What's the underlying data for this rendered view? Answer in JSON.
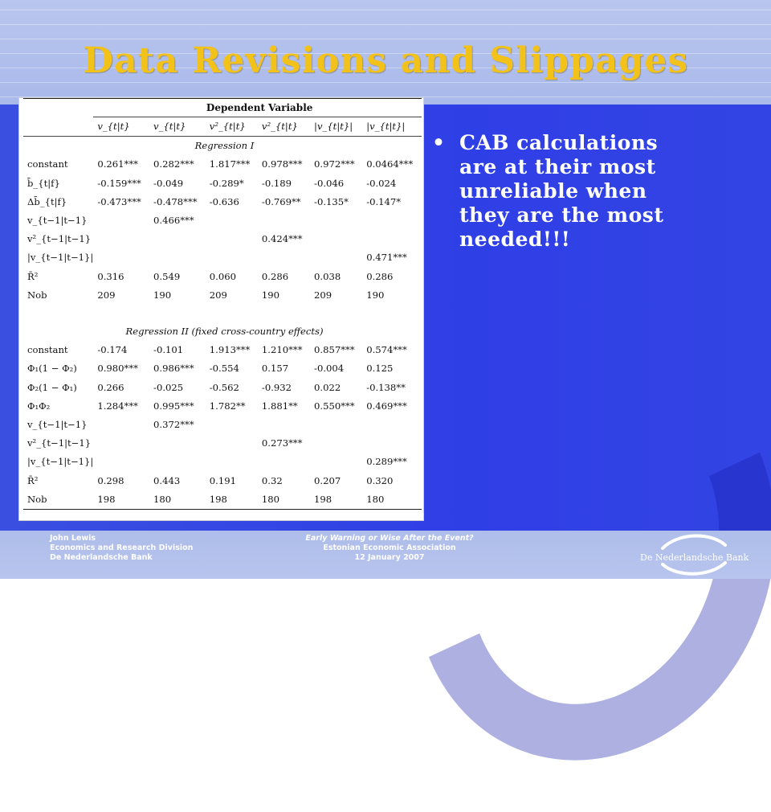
{
  "slide": {
    "title": "Data Revisions and Slippages",
    "bullet": "CAB calculations are at their most unreliable when they are the most needed!!!",
    "bullet_glyph": "•"
  },
  "table": {
    "dependent_header": "Dependent Variable",
    "col_heads": [
      "v_{t|t}",
      "v_{t|t}",
      "v²_{t|t}",
      "v²_{t|t}",
      "|v_{t|t}|",
      "|v_{t|t}|"
    ],
    "section1": "Regression I",
    "section2": "Regression II (fixed cross-country effects)",
    "reg1": [
      {
        "label": "constant",
        "v": [
          "0.261***",
          "0.282***",
          "1.817***",
          "0.978***",
          "0.972***",
          "0.0464***"
        ]
      },
      {
        "label": "b̄_{t|f}",
        "v": [
          "-0.159***",
          "-0.049",
          "-0.289*",
          "-0.189",
          "-0.046",
          "-0.024"
        ]
      },
      {
        "label": "Δb̄_{t|f}",
        "v": [
          "-0.473***",
          "-0.478***",
          "-0.636",
          "-0.769**",
          "-0.135*",
          "-0.147*"
        ]
      },
      {
        "label": "v_{t−1|t−1}",
        "v": [
          "",
          "0.466***",
          "",
          "",
          "",
          ""
        ]
      },
      {
        "label": "v²_{t−1|t−1}",
        "v": [
          "",
          "",
          "",
          "0.424***",
          "",
          ""
        ]
      },
      {
        "label": "|v_{t−1|t−1}|",
        "v": [
          "",
          "",
          "",
          "",
          "",
          "0.471***"
        ]
      },
      {
        "label": "R̄²",
        "v": [
          "0.316",
          "0.549",
          "0.060",
          "0.286",
          "0.038",
          "0.286"
        ]
      },
      {
        "label": "Nob",
        "v": [
          "209",
          "190",
          "209",
          "190",
          "209",
          "190"
        ]
      }
    ],
    "reg2": [
      {
        "label": "constant",
        "v": [
          "-0.174",
          "-0.101",
          "1.913***",
          "1.210***",
          "0.857***",
          "0.574***"
        ]
      },
      {
        "label": "Φ₁(1 − Φ₂)",
        "v": [
          "0.980***",
          "0.986***",
          "-0.554",
          "0.157",
          "-0.004",
          "0.125"
        ]
      },
      {
        "label": "Φ₂(1 − Φ₁)",
        "v": [
          "0.266",
          "-0.025",
          "-0.562",
          "-0.932",
          "0.022",
          "-0.138**"
        ]
      },
      {
        "label": "Φ₁Φ₂",
        "v": [
          "1.284***",
          "0.995***",
          "1.782**",
          "1.881**",
          "0.550***",
          "0.469***"
        ]
      },
      {
        "label": "v_{t−1|t−1}",
        "v": [
          "",
          "0.372***",
          "",
          "",
          "",
          ""
        ]
      },
      {
        "label": "v²_{t−1|t−1}",
        "v": [
          "",
          "",
          "",
          "0.273***",
          "",
          ""
        ]
      },
      {
        "label": "|v_{t−1|t−1}|",
        "v": [
          "",
          "",
          "",
          "",
          "",
          "0.289***"
        ]
      },
      {
        "label": "R̄²",
        "v": [
          "0.298",
          "0.443",
          "0.191",
          "0.32",
          "0.207",
          "0.320"
        ]
      },
      {
        "label": "Nob",
        "v": [
          "198",
          "180",
          "198",
          "180",
          "198",
          "180"
        ]
      }
    ]
  },
  "footer": {
    "left": [
      "John Lewis",
      "Economics and Research Division",
      "De Nederlandsche Bank"
    ],
    "center": [
      "Early Warning or Wise After the Event?",
      "Estonian Economic Association",
      "12 January 2007"
    ],
    "logo_text": "De Nederlandsche Bank"
  },
  "colors": {
    "title": "#f2c21b",
    "main_band": "#3344e4",
    "top_band": "#b9c6ee",
    "footer_band": "#aebde9",
    "text_light": "#ffffff"
  }
}
